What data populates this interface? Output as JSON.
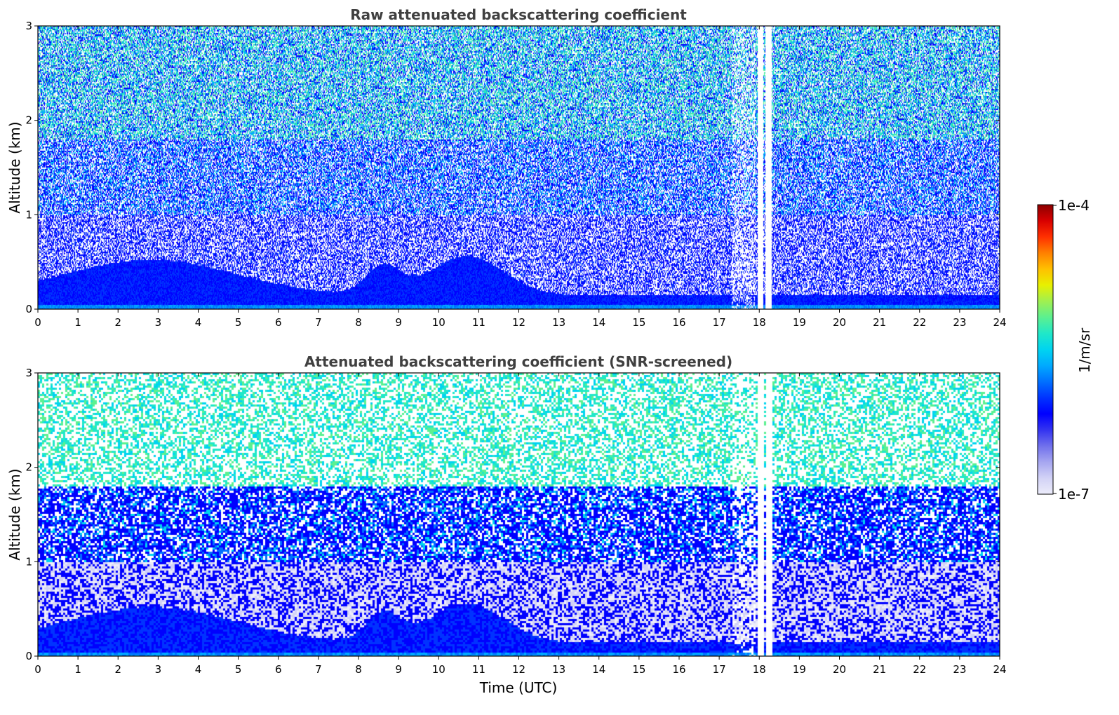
{
  "colors": {
    "background": "#ffffff",
    "title": "#404040",
    "colormap": [
      "#ececfa",
      "#d2d2f6",
      "#a6a6f0",
      "#7070ec",
      "#3333f0",
      "#0000ff",
      "#0033ff",
      "#0070ff",
      "#00aaff",
      "#00d4f0",
      "#20e8c8",
      "#5cf090",
      "#a0f050",
      "#e8f000",
      "#ffc000",
      "#ff8000",
      "#ff3000",
      "#d80000",
      "#8c0000"
    ]
  },
  "colorbar": {
    "label": "1/m/sr",
    "max_label": "1e-4",
    "min_label": "1e-7",
    "range": [
      1e-07,
      0.0001
    ],
    "scale": "log"
  },
  "chart_data": [
    {
      "type": "heatmap",
      "title": "Raw attenuated backscattering coefficient",
      "xlabel": "",
      "ylabel": "Altitude (km)",
      "xlim": [
        0,
        24
      ],
      "ylim": [
        0,
        3
      ],
      "x_ticks": [
        "0",
        "1",
        "2",
        "3",
        "4",
        "5",
        "6",
        "7",
        "8",
        "9",
        "10",
        "11",
        "12",
        "13",
        "14",
        "15",
        "16",
        "17",
        "18",
        "19",
        "20",
        "21",
        "22",
        "23",
        "24"
      ],
      "y_ticks": [
        "0",
        "1",
        "2",
        "3"
      ],
      "data_gaps_utc": [
        [
          17.95,
          18.1
        ],
        [
          18.15,
          18.3
        ]
      ],
      "screened": false
    },
    {
      "type": "heatmap",
      "title": "Attenuated backscattering coefficient (SNR-screened)",
      "xlabel": "Time (UTC)",
      "ylabel": "Altitude (km)",
      "xlim": [
        0,
        24
      ],
      "ylim": [
        0,
        3
      ],
      "x_ticks": [
        "0",
        "1",
        "2",
        "3",
        "4",
        "5",
        "6",
        "7",
        "8",
        "9",
        "10",
        "11",
        "12",
        "13",
        "14",
        "15",
        "16",
        "17",
        "18",
        "19",
        "20",
        "21",
        "22",
        "23",
        "24"
      ],
      "y_ticks": [
        "0",
        "1",
        "2",
        "3"
      ],
      "data_gaps_utc": [
        [
          17.95,
          18.1
        ],
        [
          18.15,
          18.3
        ]
      ],
      "screened": true
    }
  ]
}
